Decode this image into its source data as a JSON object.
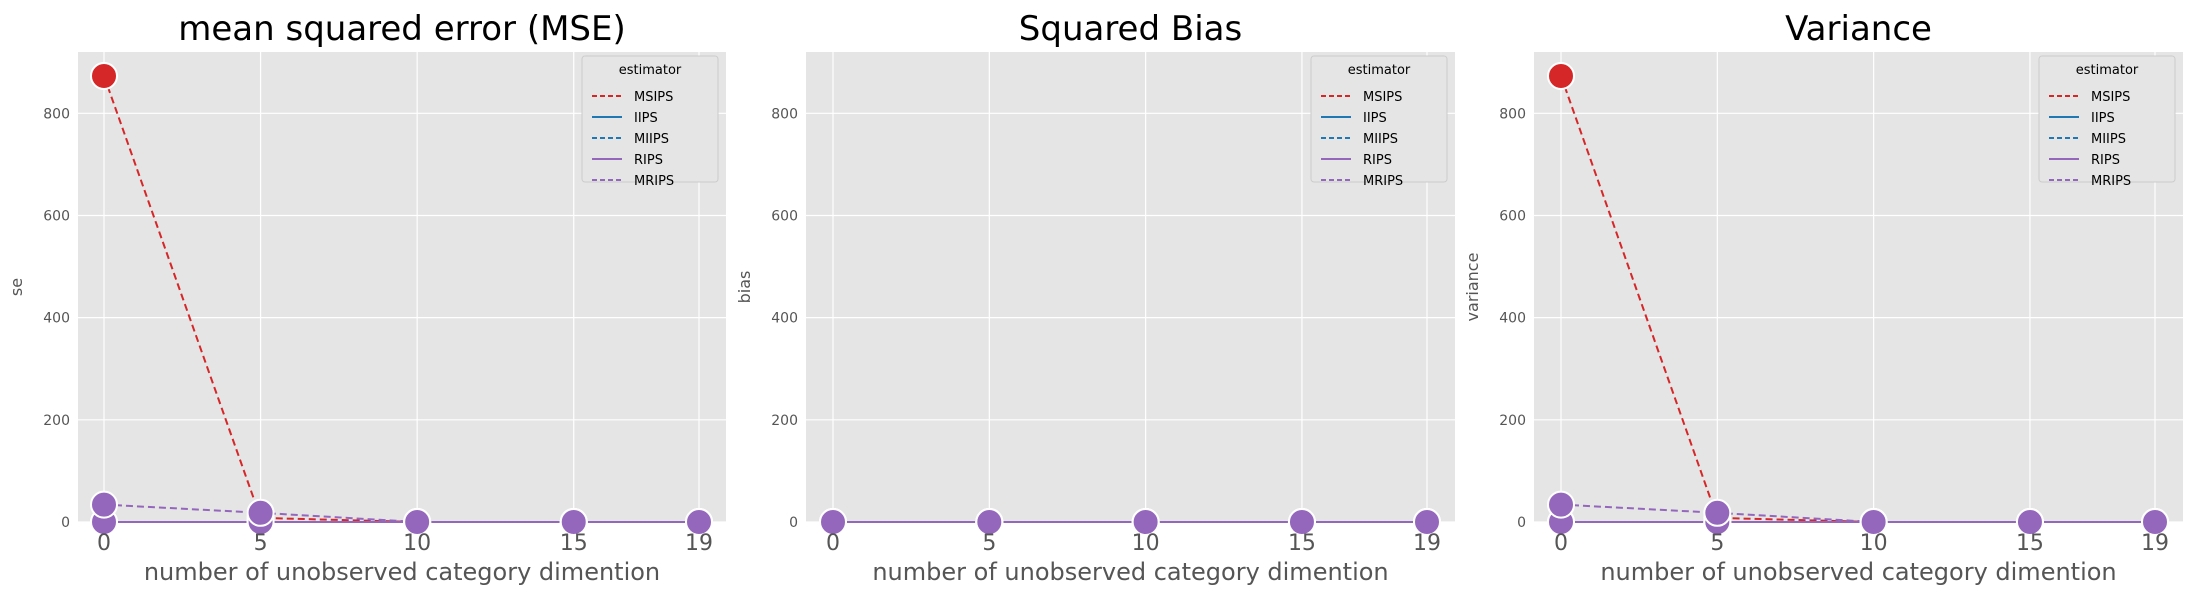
{
  "chart_data": [
    {
      "type": "line",
      "title": "mean squared error (MSE)",
      "xlabel": "number of unobserved category dimention",
      "ylabel": "se",
      "x": [
        0,
        5,
        10,
        15,
        19
      ],
      "x_ticks": [
        "0",
        "5",
        "10",
        "15",
        "19"
      ],
      "y_ticks": [
        "0",
        "200",
        "400",
        "600",
        "800"
      ],
      "ylim": [
        0,
        920
      ],
      "grid": true,
      "legend": {
        "title": "estimator",
        "position": "top-right"
      },
      "series": [
        {
          "name": "MSIPS",
          "color": "#d62728",
          "dashed": true,
          "values": [
            873,
            8,
            0,
            0,
            0
          ]
        },
        {
          "name": "IIPS",
          "color": "#1f77b4",
          "dashed": false,
          "values": [
            0,
            0,
            0,
            0,
            0
          ]
        },
        {
          "name": "MIIPS",
          "color": "#1f77b4",
          "dashed": true,
          "values": [
            0,
            0,
            0,
            0,
            0
          ]
        },
        {
          "name": "RIPS",
          "color": "#9467bd",
          "dashed": false,
          "values": [
            0,
            0,
            0,
            0,
            0
          ]
        },
        {
          "name": "MRIPS",
          "color": "#9467bd",
          "dashed": true,
          "values": [
            34,
            18,
            0,
            0,
            0
          ]
        }
      ]
    },
    {
      "type": "line",
      "title": "Squared Bias",
      "xlabel": "number of unobserved category dimention",
      "ylabel": "bias",
      "x": [
        0,
        5,
        10,
        15,
        19
      ],
      "x_ticks": [
        "0",
        "5",
        "10",
        "15",
        "19"
      ],
      "y_ticks": [
        "0",
        "200",
        "400",
        "600",
        "800"
      ],
      "ylim": [
        0,
        920
      ],
      "grid": true,
      "legend": {
        "title": "estimator",
        "position": "top-right"
      },
      "series": [
        {
          "name": "MSIPS",
          "color": "#d62728",
          "dashed": true,
          "values": [
            0,
            0,
            0,
            0,
            0
          ]
        },
        {
          "name": "IIPS",
          "color": "#1f77b4",
          "dashed": false,
          "values": [
            0,
            0,
            0,
            0,
            0
          ]
        },
        {
          "name": "MIIPS",
          "color": "#1f77b4",
          "dashed": true,
          "values": [
            0,
            0,
            0,
            0,
            0
          ]
        },
        {
          "name": "RIPS",
          "color": "#9467bd",
          "dashed": false,
          "values": [
            0,
            0,
            0,
            0,
            0
          ]
        },
        {
          "name": "MRIPS",
          "color": "#9467bd",
          "dashed": true,
          "values": [
            0,
            0,
            0,
            0,
            0
          ]
        }
      ]
    },
    {
      "type": "line",
      "title": "Variance",
      "xlabel": "number of unobserved category dimention",
      "ylabel": "variance",
      "x": [
        0,
        5,
        10,
        15,
        19
      ],
      "x_ticks": [
        "0",
        "5",
        "10",
        "15",
        "19"
      ],
      "y_ticks": [
        "0",
        "200",
        "400",
        "600",
        "800"
      ],
      "ylim": [
        0,
        920
      ],
      "grid": true,
      "legend": {
        "title": "estimator",
        "position": "top-right"
      },
      "series": [
        {
          "name": "MSIPS",
          "color": "#d62728",
          "dashed": true,
          "values": [
            873,
            8,
            0,
            0,
            0
          ]
        },
        {
          "name": "IIPS",
          "color": "#1f77b4",
          "dashed": false,
          "values": [
            0,
            0,
            0,
            0,
            0
          ]
        },
        {
          "name": "MIIPS",
          "color": "#1f77b4",
          "dashed": true,
          "values": [
            0,
            0,
            0,
            0,
            0
          ]
        },
        {
          "name": "RIPS",
          "color": "#9467bd",
          "dashed": false,
          "values": [
            0,
            0,
            0,
            0,
            0
          ]
        },
        {
          "name": "MRIPS",
          "color": "#9467bd",
          "dashed": true,
          "values": [
            34,
            18,
            0,
            0,
            0
          ]
        }
      ]
    }
  ],
  "style": {
    "plot_background": "#e5e5e5",
    "grid_color": "#ffffff",
    "text_color": "#555555",
    "title_color": "#000000"
  }
}
